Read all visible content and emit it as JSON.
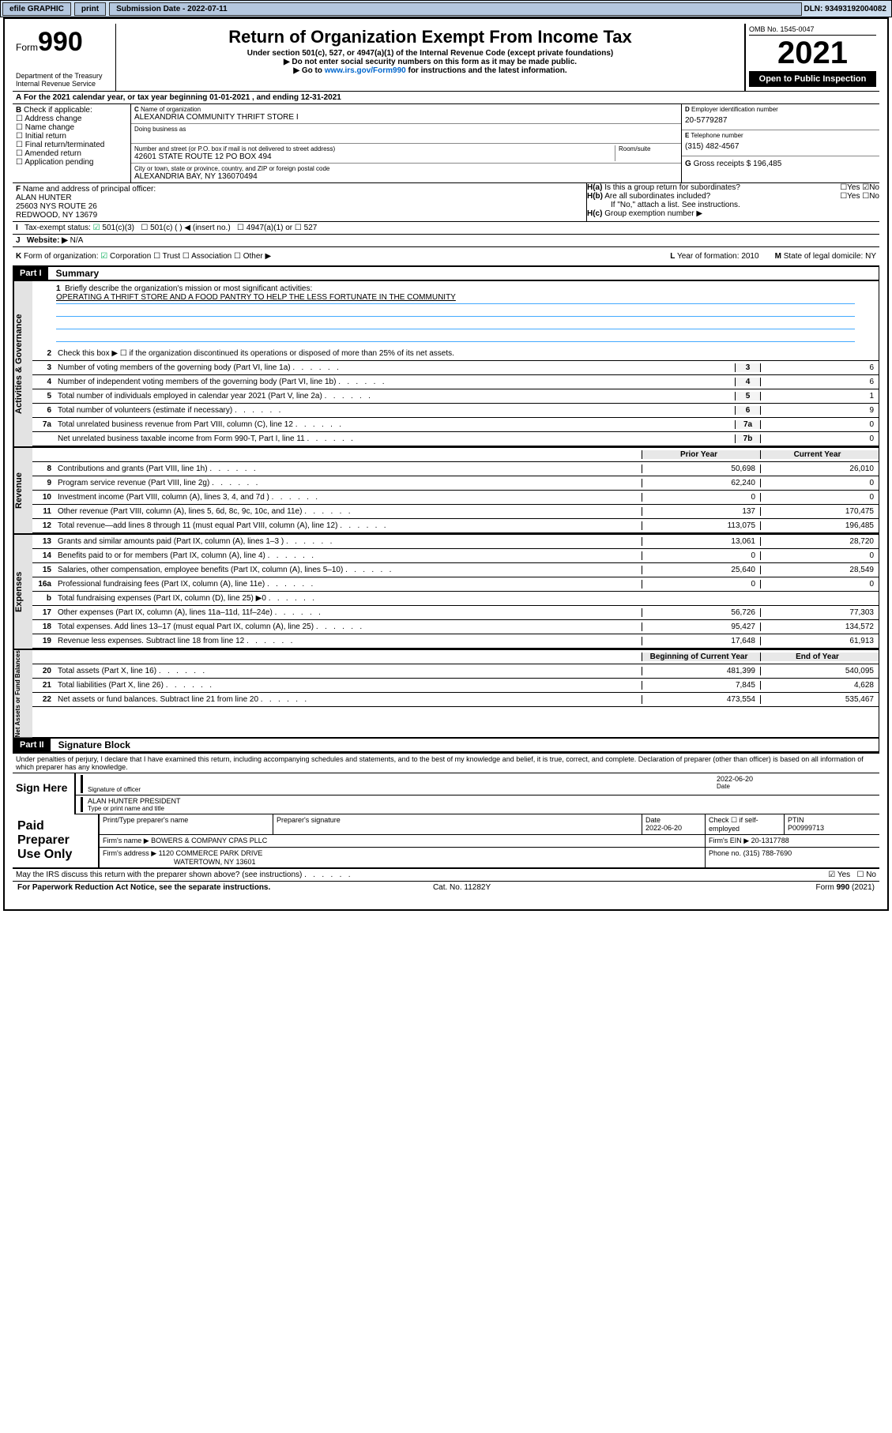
{
  "topbar": {
    "efile": "efile GRAPHIC",
    "print": "print",
    "sub_label": "Submission Date - 2022-07-11",
    "dln": "DLN: 93493192004082"
  },
  "header": {
    "form_label": "Form",
    "form_no": "990",
    "dept": "Department of the Treasury",
    "irs": "Internal Revenue Service",
    "title": "Return of Organization Exempt From Income Tax",
    "sub1": "Under section 501(c), 527, or 4947(a)(1) of the Internal Revenue Code (except private foundations)",
    "sub2": "Do not enter social security numbers on this form as it may be made public.",
    "sub3_pre": "Go to ",
    "sub3_link": "www.irs.gov/Form990",
    "sub3_post": " for instructions and the latest information.",
    "omb": "OMB No. 1545-0047",
    "year": "2021",
    "open": "Open to Public Inspection"
  },
  "a_line": "For the 2021 calendar year, or tax year beginning 01-01-2021   , and ending 12-31-2021",
  "box_b": {
    "label": "Check if applicable:",
    "items": [
      "Address change",
      "Name change",
      "Initial return",
      "Final return/terminated",
      "Amended return",
      "Application pending"
    ]
  },
  "box_c": {
    "name_label": "Name of organization",
    "name": "ALEXANDRIA COMMUNITY THRIFT STORE I",
    "dba_label": "Doing business as",
    "addr_label": "Number and street (or P.O. box if mail is not delivered to street address)",
    "room_label": "Room/suite",
    "addr": "42601 STATE ROUTE 12 PO BOX 494",
    "city_label": "City or town, state or province, country, and ZIP or foreign postal code",
    "city": "ALEXANDRIA BAY, NY  136070494"
  },
  "box_d": {
    "label": "Employer identification number",
    "val": "20-5779287"
  },
  "box_e": {
    "label": "Telephone number",
    "val": "(315) 482-4567"
  },
  "box_g": {
    "label": "Gross receipts $",
    "val": "196,485"
  },
  "box_f": {
    "label": "Name and address of principal officer:",
    "name": "ALAN HUNTER",
    "addr1": "25603 NYS ROUTE 26",
    "addr2": "REDWOOD, NY 13679"
  },
  "box_h": {
    "a": "Is this a group return for subordinates?",
    "b": "Are all subordinates included?",
    "note": "If \"No,\" attach a list. See instructions.",
    "c": "Group exemption number ▶"
  },
  "box_i": {
    "label": "Tax-exempt status:",
    "o1": "501(c)(3)",
    "o2": "501(c) (   ) ◀ (insert no.)",
    "o3": "4947(a)(1) or",
    "o4": "527"
  },
  "box_j": {
    "label": "Website: ▶",
    "val": "N/A"
  },
  "box_k": {
    "label": "Form of organization:",
    "o1": "Corporation",
    "o2": "Trust",
    "o3": "Association",
    "o4": "Other ▶"
  },
  "box_l": {
    "label": "Year of formation:",
    "val": "2010"
  },
  "box_m": {
    "label": "State of legal domicile:",
    "val": "NY"
  },
  "part1": {
    "hdr": "Part I",
    "title": "Summary"
  },
  "mission": {
    "q": "Briefly describe the organization's mission or most significant activities:",
    "txt": "OPERATING A THRIFT STORE AND A FOOD PANTRY TO HELP THE LESS FORTUNATE IN THE COMMUNITY"
  },
  "line2": "Check this box ▶ ☐  if the organization discontinued its operations or disposed of more than 25% of its net assets.",
  "tabs": {
    "gov": "Activities & Governance",
    "rev": "Revenue",
    "exp": "Expenses",
    "net": "Net Assets or Fund Balances"
  },
  "cols": {
    "py": "Prior Year",
    "cy": "Current Year",
    "boy": "Beginning of Current Year",
    "eoy": "End of Year"
  },
  "gov_rows": [
    {
      "n": "3",
      "d": "Number of voting members of the governing body (Part VI, line 1a)",
      "id": "3",
      "v": "6"
    },
    {
      "n": "4",
      "d": "Number of independent voting members of the governing body (Part VI, line 1b)",
      "id": "4",
      "v": "6"
    },
    {
      "n": "5",
      "d": "Total number of individuals employed in calendar year 2021 (Part V, line 2a)",
      "id": "5",
      "v": "1"
    },
    {
      "n": "6",
      "d": "Total number of volunteers (estimate if necessary)",
      "id": "6",
      "v": "9"
    },
    {
      "n": "7a",
      "d": "Total unrelated business revenue from Part VIII, column (C), line 12",
      "id": "7a",
      "v": "0"
    },
    {
      "n": "",
      "d": "Net unrelated business taxable income from Form 990-T, Part I, line 11",
      "id": "7b",
      "v": "0"
    }
  ],
  "rev_rows": [
    {
      "n": "8",
      "d": "Contributions and grants (Part VIII, line 1h)",
      "py": "50,698",
      "cy": "26,010"
    },
    {
      "n": "9",
      "d": "Program service revenue (Part VIII, line 2g)",
      "py": "62,240",
      "cy": "0"
    },
    {
      "n": "10",
      "d": "Investment income (Part VIII, column (A), lines 3, 4, and 7d )",
      "py": "0",
      "cy": "0"
    },
    {
      "n": "11",
      "d": "Other revenue (Part VIII, column (A), lines 5, 6d, 8c, 9c, 10c, and 11e)",
      "py": "137",
      "cy": "170,475"
    },
    {
      "n": "12",
      "d": "Total revenue—add lines 8 through 11 (must equal Part VIII, column (A), line 12)",
      "py": "113,075",
      "cy": "196,485"
    }
  ],
  "exp_rows": [
    {
      "n": "13",
      "d": "Grants and similar amounts paid (Part IX, column (A), lines 1–3 )",
      "py": "13,061",
      "cy": "28,720"
    },
    {
      "n": "14",
      "d": "Benefits paid to or for members (Part IX, column (A), line 4)",
      "py": "0",
      "cy": "0"
    },
    {
      "n": "15",
      "d": "Salaries, other compensation, employee benefits (Part IX, column (A), lines 5–10)",
      "py": "25,640",
      "cy": "28,549"
    },
    {
      "n": "16a",
      "d": "Professional fundraising fees (Part IX, column (A), line 11e)",
      "py": "0",
      "cy": "0"
    },
    {
      "n": "b",
      "d": "Total fundraising expenses (Part IX, column (D), line 25) ▶0",
      "py": "",
      "cy": ""
    },
    {
      "n": "17",
      "d": "Other expenses (Part IX, column (A), lines 11a–11d, 11f–24e)",
      "py": "56,726",
      "cy": "77,303"
    },
    {
      "n": "18",
      "d": "Total expenses. Add lines 13–17 (must equal Part IX, column (A), line 25)",
      "py": "95,427",
      "cy": "134,572"
    },
    {
      "n": "19",
      "d": "Revenue less expenses. Subtract line 18 from line 12",
      "py": "17,648",
      "cy": "61,913"
    }
  ],
  "net_rows": [
    {
      "n": "20",
      "d": "Total assets (Part X, line 16)",
      "py": "481,399",
      "cy": "540,095"
    },
    {
      "n": "21",
      "d": "Total liabilities (Part X, line 26)",
      "py": "7,845",
      "cy": "4,628"
    },
    {
      "n": "22",
      "d": "Net assets or fund balances. Subtract line 21 from line 20",
      "py": "473,554",
      "cy": "535,467"
    }
  ],
  "part2": {
    "hdr": "Part II",
    "title": "Signature Block"
  },
  "sig": {
    "para": "Under penalties of perjury, I declare that I have examined this return, including accompanying schedules and statements, and to the best of my knowledge and belief, it is true, correct, and complete. Declaration of preparer (other than officer) is based on all information of which preparer has any knowledge.",
    "here": "Sign Here",
    "l1": "Signature of officer",
    "date": "2022-06-20",
    "l2": "ALAN HUNTER  PRESIDENT",
    "l2b": "Type or print name and title"
  },
  "prep": {
    "title": "Paid Preparer Use Only",
    "h1": "Print/Type preparer's name",
    "h2": "Preparer's signature",
    "h3": "Date",
    "date": "2022-06-20",
    "h4": "Check ☐ if self-employed",
    "h5": "PTIN",
    "ptin": "P00999713",
    "firm_l": "Firm's name    ▶",
    "firm": "BOWERS & COMPANY CPAS PLLC",
    "ein_l": "Firm's EIN ▶",
    "ein": "20-1317788",
    "addr_l": "Firm's address ▶",
    "addr1": "1120 COMMERCE PARK DRIVE",
    "addr2": "WATERTOWN, NY 13601",
    "phone_l": "Phone no.",
    "phone": "(315) 788-7690"
  },
  "discuss": "May the IRS discuss this return with the preparer shown above? (see instructions)",
  "footer": {
    "l": "For Paperwork Reduction Act Notice, see the separate instructions.",
    "m": "Cat. No. 11282Y",
    "r": "Form 990 (2021)"
  }
}
